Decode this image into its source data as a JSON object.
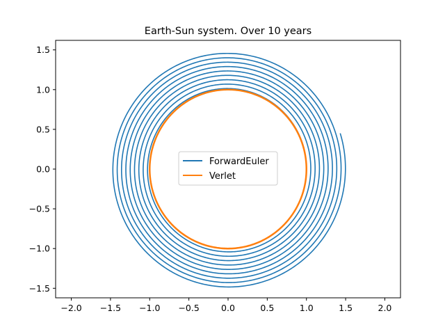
{
  "chart_data": {
    "type": "line",
    "title": "Earth-Sun system. Over 10 years",
    "xlabel": "",
    "ylabel": "",
    "xlim": [
      -2.2,
      2.2
    ],
    "ylim": [
      -1.62,
      1.62
    ],
    "x_ticks": [
      "−2.0",
      "−1.5",
      "−1.0",
      "−0.5",
      "0.0",
      "0.5",
      "1.0",
      "1.5",
      "2.0"
    ],
    "y_ticks": [
      "−1.5",
      "−1.0",
      "−0.5",
      "0.0",
      "0.5",
      "1.0",
      "1.5"
    ],
    "x_tick_values": [
      -2.0,
      -1.5,
      -1.0,
      -0.5,
      0.0,
      0.5,
      1.0,
      1.5,
      2.0
    ],
    "y_tick_values": [
      -1.5,
      -1.0,
      -0.5,
      0.0,
      0.5,
      1.0,
      1.5
    ],
    "grid": false,
    "legend": {
      "position": "center",
      "entries": [
        "ForwardEuler",
        "Verlet"
      ]
    },
    "series": [
      {
        "name": "ForwardEuler",
        "color": "#1f77b4",
        "form": "spiral",
        "start_radius": 1.0,
        "end_radius": 1.5,
        "turns": 10,
        "end_point": [
          1.43,
          0.45
        ]
      },
      {
        "name": "Verlet",
        "color": "#ff7f0e",
        "form": "circle",
        "radius": 1.0,
        "turns": 10
      }
    ]
  }
}
